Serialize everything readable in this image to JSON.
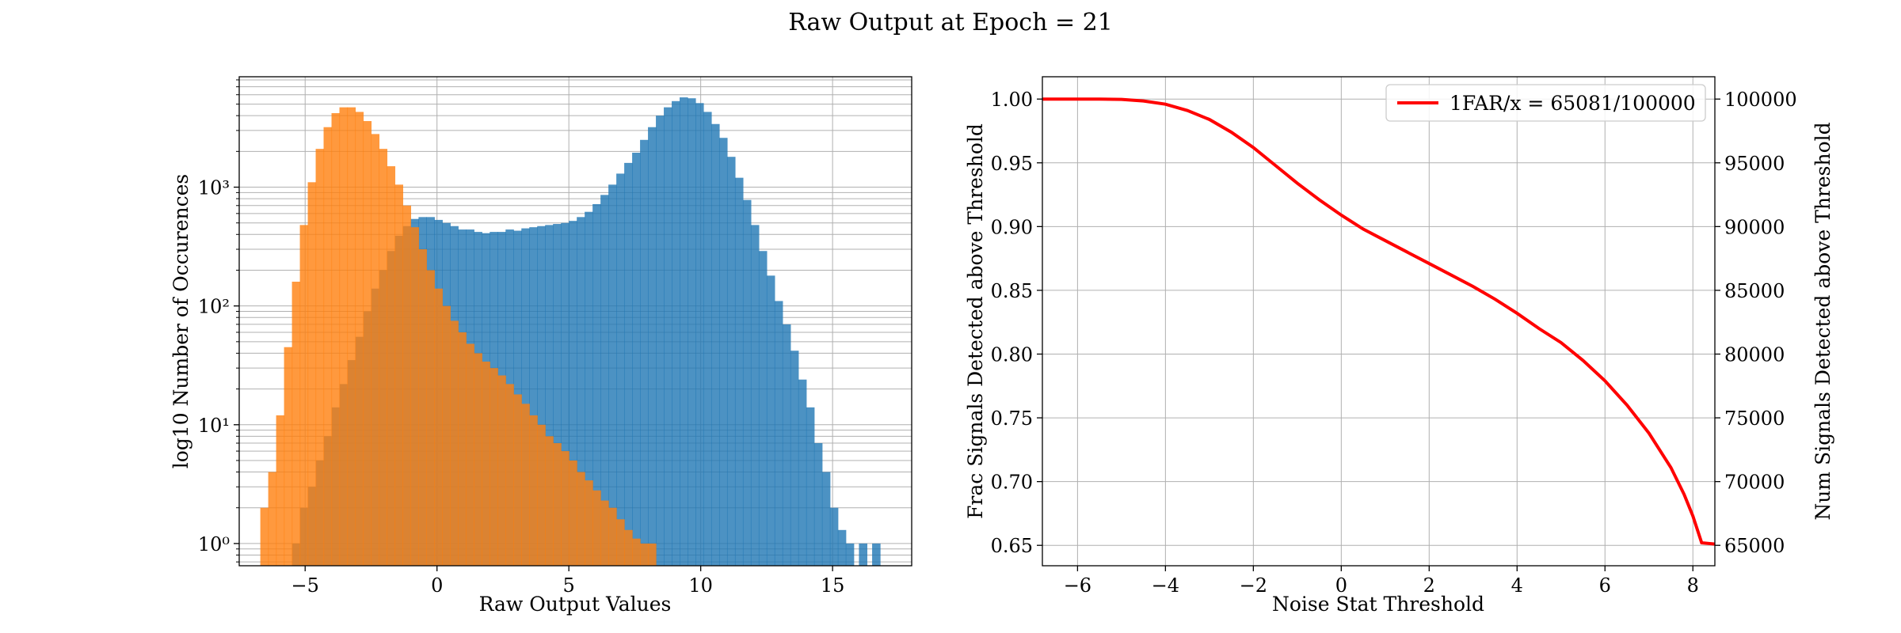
{
  "figure": {
    "title": "Raw Output at Epoch = 21"
  },
  "colors": {
    "signal": "#1f77b4",
    "noise": "#ff7f0e",
    "curve": "#ff0000",
    "grid": "#b0b0b0"
  },
  "chart_data": [
    {
      "type": "bar",
      "subtype": "histogram",
      "xlabel": "Raw Output Values",
      "ylabel": "log10 Number of Occurences",
      "yscale": "log",
      "xlim": [
        -7.5,
        18.0
      ],
      "ylim": [
        0.65,
        8500
      ],
      "xticks": [
        -5,
        0,
        5,
        10,
        15
      ],
      "xtick_labels": [
        "−5",
        "0",
        "5",
        "10",
        "15"
      ],
      "yticks": [
        1,
        10,
        100,
        1000
      ],
      "ytick_labels": [
        "10⁰",
        "10¹",
        "10²",
        "10³"
      ],
      "grid": true,
      "bin_width": 0.3,
      "series": [
        {
          "key": "signal",
          "x_start": [
            -5.5,
            -5.2,
            -4.9,
            -4.6,
            -4.3,
            -4.0,
            -3.7,
            -3.4,
            -3.1,
            -2.8,
            -2.5,
            -2.2,
            -1.9,
            -1.6,
            -1.3,
            -1.0,
            -0.7,
            -0.4,
            -0.1,
            0.2,
            0.5,
            0.8,
            1.1,
            1.4,
            1.7,
            2.0,
            2.3,
            2.6,
            2.9,
            3.2,
            3.5,
            3.8,
            4.1,
            4.4,
            4.7,
            5.0,
            5.3,
            5.6,
            5.9,
            6.2,
            6.5,
            6.8,
            7.1,
            7.4,
            7.7,
            8.0,
            8.3,
            8.6,
            8.9,
            9.2,
            9.5,
            9.8,
            10.1,
            10.4,
            10.7,
            11.0,
            11.3,
            11.6,
            11.9,
            12.2,
            12.5,
            12.8,
            13.1,
            13.4,
            13.7,
            14.0,
            14.3,
            14.6,
            14.9,
            15.2,
            15.5,
            16.0,
            16.5
          ],
          "values": [
            1,
            2,
            3,
            5,
            8,
            14,
            22,
            35,
            55,
            90,
            140,
            200,
            290,
            390,
            470,
            540,
            560,
            560,
            530,
            500,
            470,
            440,
            440,
            420,
            410,
            420,
            420,
            440,
            430,
            450,
            460,
            470,
            480,
            490,
            500,
            520,
            560,
            620,
            720,
            860,
            1050,
            1300,
            1600,
            1950,
            2500,
            3200,
            4000,
            4700,
            5300,
            5700,
            5600,
            5100,
            4300,
            3400,
            2600,
            1800,
            1200,
            780,
            480,
            290,
            180,
            110,
            70,
            42,
            24,
            14,
            7,
            4,
            2,
            1.3,
            1,
            1,
            1
          ]
        },
        {
          "key": "noise",
          "x_start": [
            -6.7,
            -6.4,
            -6.1,
            -5.8,
            -5.5,
            -5.2,
            -4.9,
            -4.6,
            -4.3,
            -4.0,
            -3.7,
            -3.4,
            -3.1,
            -2.8,
            -2.5,
            -2.2,
            -1.9,
            -1.6,
            -1.3,
            -1.0,
            -0.7,
            -0.4,
            -0.1,
            0.2,
            0.5,
            0.8,
            1.1,
            1.4,
            1.7,
            2.0,
            2.3,
            2.6,
            2.9,
            3.2,
            3.5,
            3.8,
            4.1,
            4.4,
            4.7,
            5.0,
            5.3,
            5.6,
            5.9,
            6.2,
            6.5,
            6.8,
            7.1,
            7.4,
            7.7,
            8.0
          ],
          "values": [
            2,
            4,
            12,
            45,
            160,
            480,
            1100,
            2100,
            3200,
            4200,
            4700,
            4700,
            4300,
            3600,
            2800,
            2100,
            1500,
            1050,
            700,
            460,
            300,
            200,
            140,
            100,
            75,
            60,
            48,
            40,
            34,
            30,
            26,
            22,
            18,
            15,
            12,
            10,
            8,
            7,
            6,
            5,
            4,
            3.4,
            2.8,
            2.3,
            2,
            1.6,
            1.3,
            1.1,
            1,
            1
          ]
        }
      ]
    },
    {
      "type": "line",
      "xlabel": "Noise Stat Threshold",
      "ylabel": "Frac Signals Detected above Threshold",
      "ylabel_right": "Num Signals Detected above Threshold",
      "xlim": [
        -6.8,
        8.5
      ],
      "ylim": [
        0.634,
        1.0175
      ],
      "ylim_right": [
        63400,
        101750
      ],
      "xticks": [
        -6,
        -4,
        -2,
        0,
        2,
        4,
        6,
        8
      ],
      "xtick_labels": [
        "−6",
        "−4",
        "−2",
        "0",
        "2",
        "4",
        "6",
        "8"
      ],
      "yticks": [
        0.65,
        0.7,
        0.75,
        0.8,
        0.85,
        0.9,
        0.95,
        1.0
      ],
      "ytick_labels": [
        "0.65",
        "0.70",
        "0.75",
        "0.80",
        "0.85",
        "0.90",
        "0.95",
        "1.00"
      ],
      "yticks_right": [
        65000,
        70000,
        75000,
        80000,
        85000,
        90000,
        95000,
        100000
      ],
      "ytick_labels_right": [
        "65000",
        "70000",
        "75000",
        "80000",
        "85000",
        "90000",
        "95000",
        "100000"
      ],
      "grid": true,
      "legend": "top-right",
      "series": [
        {
          "name": "1FAR/x = 65081/100000",
          "key": "curve",
          "x": [
            -6.8,
            -6.0,
            -5.5,
            -5.0,
            -4.5,
            -4.0,
            -3.5,
            -3.0,
            -2.5,
            -2.0,
            -1.5,
            -1.0,
            -0.5,
            0.0,
            0.5,
            1.0,
            1.5,
            2.0,
            2.5,
            3.0,
            3.5,
            4.0,
            4.5,
            5.0,
            5.5,
            6.0,
            6.5,
            7.0,
            7.5,
            7.8,
            8.0,
            8.2,
            8.5
          ],
          "y": [
            1.0,
            1.0,
            1.0,
            0.9997,
            0.9985,
            0.996,
            0.991,
            0.984,
            0.974,
            0.962,
            0.948,
            0.934,
            0.921,
            0.909,
            0.898,
            0.889,
            0.88,
            0.871,
            0.862,
            0.853,
            0.843,
            0.832,
            0.82,
            0.809,
            0.795,
            0.779,
            0.76,
            0.738,
            0.711,
            0.69,
            0.673,
            0.652,
            0.651
          ]
        }
      ]
    }
  ]
}
